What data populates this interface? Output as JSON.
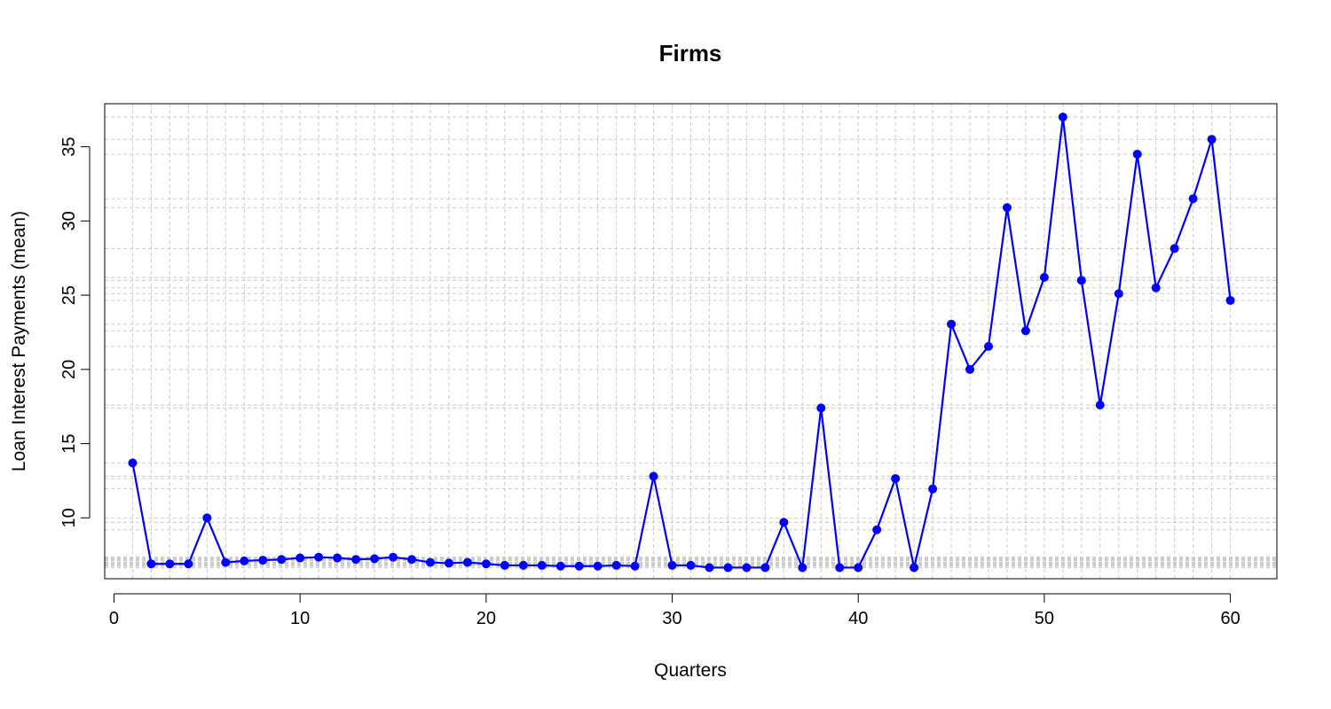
{
  "chart_data": {
    "type": "line",
    "title": "Firms",
    "xlabel": "Quarters",
    "ylabel": "Loan Interest Payments (mean)",
    "xlim": [
      -0.5,
      62.5
    ],
    "ylim": [
      5.9,
      37.9
    ],
    "x_ticks": [
      0,
      10,
      20,
      30,
      40,
      50,
      60
    ],
    "y_ticks": [
      10,
      15,
      20,
      25,
      30,
      35
    ],
    "grid": true,
    "colors": {
      "series": "#0000ff",
      "grid": "#cccccc",
      "axis": "#000000"
    },
    "series": [
      {
        "x": [
          1,
          2,
          3,
          4,
          5,
          6,
          7,
          8,
          9,
          10,
          11,
          12,
          13,
          14,
          15,
          16,
          17,
          18,
          19,
          20,
          21,
          22,
          23,
          24,
          25,
          26,
          27,
          28,
          29,
          30,
          31,
          32,
          33,
          34,
          35,
          36,
          37,
          38,
          39,
          40,
          41,
          42,
          43,
          44,
          45,
          46,
          47,
          48,
          49,
          50,
          51,
          52,
          53,
          54,
          55,
          56,
          57,
          58,
          59,
          60
        ],
        "values": [
          13.7,
          6.9,
          6.9,
          6.9,
          10.0,
          7.0,
          7.1,
          7.15,
          7.2,
          7.3,
          7.35,
          7.3,
          7.2,
          7.25,
          7.35,
          7.2,
          7.0,
          6.95,
          7.0,
          6.9,
          6.8,
          6.8,
          6.8,
          6.75,
          6.75,
          6.75,
          6.8,
          6.75,
          12.8,
          6.8,
          6.8,
          6.65,
          6.65,
          6.65,
          6.65,
          9.7,
          6.65,
          17.4,
          6.65,
          6.65,
          9.2,
          12.65,
          6.65,
          11.95,
          23.05,
          20.0,
          21.55,
          30.9,
          22.6,
          26.2,
          37.0,
          26.0,
          17.6,
          25.1,
          34.5,
          25.5,
          28.15,
          31.5,
          35.5,
          24.65
        ]
      }
    ]
  }
}
